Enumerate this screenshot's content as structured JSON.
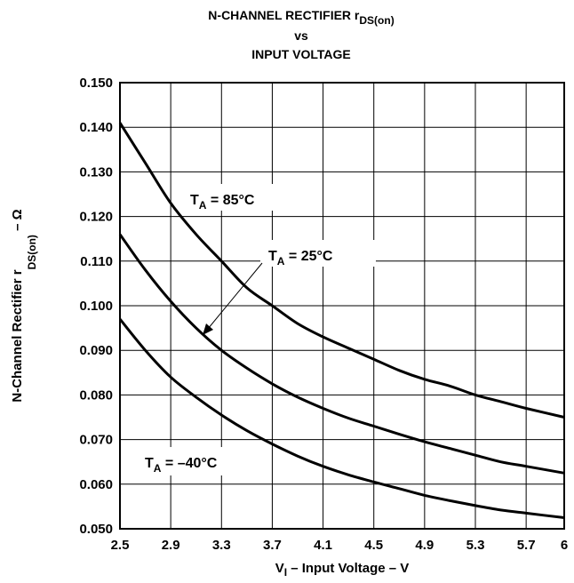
{
  "chart_data": {
    "type": "line",
    "title": {
      "line1_main": "N-CHANNEL RECTIFIER r",
      "line1_sub": "DS(on)",
      "line2": "vs",
      "line3": "INPUT VOLTAGE"
    },
    "xlabel": {
      "main": "V",
      "sub": "I",
      "rest": " – Input Voltage – V"
    },
    "ylabel": {
      "main": "N-Channel Rectifier r",
      "sub": "DS(on)",
      "rest": " – Ω"
    },
    "xlim": [
      2.5,
      6
    ],
    "ylim": [
      0.05,
      0.15
    ],
    "x_ticks": [
      "2.5",
      "2.9",
      "3.3",
      "3.7",
      "4.1",
      "4.5",
      "4.9",
      "5.3",
      "5.7",
      "6"
    ],
    "y_ticks": [
      "0.050",
      "0.060",
      "0.070",
      "0.080",
      "0.090",
      "0.100",
      "0.110",
      "0.120",
      "0.130",
      "0.140",
      "0.150"
    ],
    "grid": true,
    "series": [
      {
        "name": "T_A = 85°C",
        "x": [
          2.5,
          2.7,
          2.9,
          3.1,
          3.3,
          3.5,
          3.7,
          3.9,
          4.1,
          4.3,
          4.5,
          4.7,
          4.9,
          5.1,
          5.3,
          5.5,
          5.7,
          6.0
        ],
        "y": [
          0.141,
          0.132,
          0.123,
          0.116,
          0.11,
          0.104,
          0.1,
          0.096,
          0.093,
          0.0905,
          0.088,
          0.0855,
          0.0835,
          0.082,
          0.08,
          0.0785,
          0.077,
          0.075
        ]
      },
      {
        "name": "T_A = 25°C",
        "x": [
          2.5,
          2.7,
          2.9,
          3.1,
          3.3,
          3.5,
          3.7,
          3.9,
          4.1,
          4.3,
          4.5,
          4.7,
          4.9,
          5.1,
          5.3,
          5.5,
          5.7,
          6.0
        ],
        "y": [
          0.116,
          0.108,
          0.101,
          0.095,
          0.09,
          0.086,
          0.0825,
          0.0795,
          0.077,
          0.0748,
          0.073,
          0.0712,
          0.0695,
          0.068,
          0.0665,
          0.065,
          0.064,
          0.0625
        ]
      },
      {
        "name": "T_A = −40°C",
        "x": [
          2.5,
          2.7,
          2.9,
          3.1,
          3.3,
          3.5,
          3.7,
          3.9,
          4.1,
          4.3,
          4.5,
          4.7,
          4.9,
          5.1,
          5.3,
          5.5,
          5.7,
          6.0
        ],
        "y": [
          0.097,
          0.09,
          0.084,
          0.0795,
          0.0755,
          0.072,
          0.069,
          0.0663,
          0.064,
          0.0621,
          0.0605,
          0.059,
          0.0575,
          0.0563,
          0.0552,
          0.0542,
          0.0535,
          0.0525
        ]
      }
    ],
    "annotations": [
      {
        "main": "T",
        "sub": "A",
        "rest": "  = 85°C"
      },
      {
        "main": "T",
        "sub": "A",
        "rest": "  = 25°C"
      },
      {
        "main": "T",
        "sub": "A",
        "rest": "  = –40°C"
      }
    ]
  }
}
